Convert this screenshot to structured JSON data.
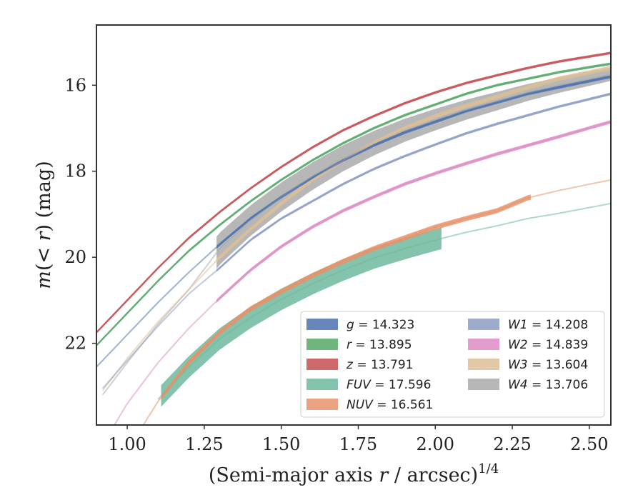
{
  "chart_data": {
    "type": "line",
    "xlabel_main": "(Semi-major axis ",
    "xlabel_var": "r",
    "xlabel_rest": " / arcsec)",
    "xlabel_exp": "1/4",
    "ylabel_main": "m",
    "ylabel_args": "(< ",
    "ylabel_var": "r",
    "ylabel_rest": ") (mag)",
    "xlim": [
      0.9,
      2.57
    ],
    "ylim": [
      23.9,
      14.6
    ],
    "y_inverted": true,
    "xticks": [
      1.0,
      1.25,
      1.5,
      1.75,
      2.0,
      2.25,
      2.5
    ],
    "xtick_labels": [
      "1.00",
      "1.25",
      "1.50",
      "1.75",
      "2.00",
      "2.25",
      "2.50"
    ],
    "yticks": [
      16,
      18,
      20,
      22
    ],
    "ytick_labels": [
      "16",
      "18",
      "20",
      "22"
    ],
    "grid": false,
    "legend_placement": "lower-right",
    "series": [
      {
        "name": "g",
        "value": "14.323",
        "color": "#4c72b0",
        "curve": {
          "x": [
            0.9,
            1.0,
            1.1,
            1.2,
            1.3,
            1.4,
            1.5,
            1.6,
            1.7,
            1.8,
            1.9,
            2.0,
            2.1,
            2.2,
            2.3,
            2.4,
            2.57
          ],
          "y": [
            22.55,
            21.8,
            21.05,
            20.35,
            19.7,
            19.1,
            18.6,
            18.15,
            17.75,
            17.4,
            17.1,
            16.85,
            16.6,
            16.4,
            16.2,
            16.05,
            15.8
          ]
        },
        "band": {
          "x_start": 1.29,
          "x_end": 2.57,
          "width": 0.07
        }
      },
      {
        "name": "r",
        "value": "13.895",
        "color": "#55a868",
        "curve": {
          "x": [
            0.9,
            1.0,
            1.1,
            1.2,
            1.3,
            1.4,
            1.5,
            1.6,
            1.7,
            1.8,
            1.9,
            2.0,
            2.1,
            2.2,
            2.3,
            2.4,
            2.57
          ],
          "y": [
            22.05,
            21.3,
            20.55,
            19.85,
            19.25,
            18.7,
            18.2,
            17.75,
            17.35,
            17.0,
            16.7,
            16.45,
            16.2,
            16.0,
            15.85,
            15.7,
            15.5
          ]
        },
        "band": {
          "x_start": 0.9,
          "x_end": 2.57,
          "width": 0.06
        }
      },
      {
        "name": "z",
        "value": "13.791",
        "color": "#c44e52",
        "curve": {
          "x": [
            0.9,
            1.0,
            1.1,
            1.2,
            1.3,
            1.4,
            1.5,
            1.6,
            1.7,
            1.8,
            1.9,
            2.0,
            2.1,
            2.2,
            2.3,
            2.4,
            2.57
          ],
          "y": [
            21.75,
            21.0,
            20.25,
            19.55,
            18.95,
            18.4,
            17.9,
            17.45,
            17.05,
            16.72,
            16.42,
            16.17,
            15.95,
            15.77,
            15.6,
            15.45,
            15.25
          ]
        },
        "band": {
          "x_start": 0.9,
          "x_end": 2.57,
          "width": 0.06
        }
      },
      {
        "name": "FUV",
        "value": "17.596",
        "color": "#6fb89e",
        "curve": {
          "x": [
            1.1,
            1.2,
            1.3,
            1.4,
            1.5,
            1.6,
            1.7,
            1.8,
            1.9,
            2.0,
            2.1,
            2.2,
            2.3,
            2.4,
            2.57
          ],
          "y": [
            23.3,
            22.55,
            21.9,
            21.4,
            20.98,
            20.62,
            20.3,
            20.02,
            19.8,
            19.6,
            19.42,
            19.27,
            19.1,
            18.98,
            18.75
          ]
        },
        "band": {
          "x_start": 1.11,
          "x_end": 2.02,
          "width": 0.5
        }
      },
      {
        "name": "NUV",
        "value": "16.561",
        "color": "#e8926a",
        "curve": {
          "x": [
            1.0,
            1.1,
            1.2,
            1.3,
            1.4,
            1.5,
            1.6,
            1.7,
            1.8,
            1.9,
            2.0,
            2.1,
            2.2,
            2.3,
            2.4,
            2.57
          ],
          "y": [
            24.5,
            23.35,
            22.45,
            21.75,
            21.2,
            20.8,
            20.43,
            20.1,
            19.8,
            19.55,
            19.3,
            19.1,
            18.92,
            18.62,
            18.45,
            18.2
          ]
        },
        "band": {
          "x_start": 1.11,
          "x_end": 2.31,
          "width": 0.12
        }
      },
      {
        "name": "W1",
        "value": "14.208",
        "color": "#8c9dc4",
        "curve": {
          "x": [
            0.92,
            1.0,
            1.1,
            1.2,
            1.3,
            1.4,
            1.5,
            1.6,
            1.7,
            1.8,
            1.9,
            2.0,
            2.1,
            2.2,
            2.3,
            2.4,
            2.57
          ],
          "y": [
            23.05,
            22.4,
            21.6,
            20.85,
            20.25,
            19.6,
            19.1,
            18.7,
            18.3,
            17.95,
            17.65,
            17.38,
            17.12,
            16.9,
            16.7,
            16.5,
            16.2
          ]
        },
        "band": {
          "x_start": 1.29,
          "x_end": 2.57,
          "width": 0.06
        }
      },
      {
        "name": "W2",
        "value": "14.839",
        "color": "#dd8cc4",
        "curve": {
          "x": [
            0.95,
            1.0,
            1.1,
            1.2,
            1.3,
            1.4,
            1.5,
            1.6,
            1.7,
            1.8,
            1.9,
            2.0,
            2.1,
            2.2,
            2.3,
            2.4,
            2.57
          ],
          "y": [
            24.0,
            23.4,
            22.45,
            21.65,
            20.95,
            20.3,
            19.75,
            19.3,
            18.92,
            18.6,
            18.3,
            18.05,
            17.82,
            17.6,
            17.4,
            17.2,
            16.85
          ]
        },
        "band": {
          "x_start": 1.29,
          "x_end": 2.57,
          "width": 0.08
        }
      },
      {
        "name": "W3",
        "value": "13.604",
        "color": "#dcc098",
        "curve": {
          "x": [
            0.92,
            1.0,
            1.1,
            1.2,
            1.3,
            1.4,
            1.5,
            1.6,
            1.7,
            1.8,
            1.9,
            2.0,
            2.1,
            2.2,
            2.3,
            2.4,
            2.57
          ],
          "y": [
            23.1,
            22.35,
            21.5,
            20.75,
            20.0,
            19.35,
            18.75,
            18.2,
            17.75,
            17.35,
            17.0,
            16.72,
            16.48,
            16.27,
            16.05,
            15.85,
            15.6
          ]
        },
        "band": {
          "x_start": 1.29,
          "x_end": 2.57,
          "width": 0.1
        }
      },
      {
        "name": "W4",
        "value": "13.706",
        "color": "#aaaaaa",
        "curve": {
          "x": [
            0.92,
            1.0,
            1.1,
            1.2,
            1.3,
            1.4,
            1.5,
            1.6,
            1.7,
            1.8,
            1.9,
            2.0,
            2.1,
            2.2,
            2.3,
            2.4,
            2.57
          ],
          "y": [
            23.2,
            22.45,
            21.55,
            20.75,
            19.8,
            19.15,
            18.6,
            18.12,
            17.7,
            17.35,
            17.05,
            16.8,
            16.57,
            16.37,
            16.17,
            16.0,
            15.75
          ]
        },
        "band": {
          "x_start": 1.29,
          "x_end": 2.57,
          "width": 0.75,
          "width_end": 0.3
        }
      }
    ]
  }
}
